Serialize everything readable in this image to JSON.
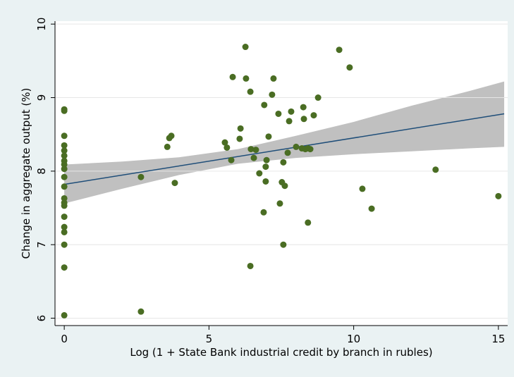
{
  "chart_data": {
    "type": "scatter",
    "x_label": "Log (1 + State Bank industrial credit by branch in rubles)",
    "y_label": "Change in aggregate output (%)",
    "xlim": [
      -0.32,
      15.32
    ],
    "ylim": [
      5.9,
      10.04
    ],
    "xticks": [
      0,
      5,
      10,
      15
    ],
    "yticks": [
      6,
      7,
      8,
      9,
      10
    ],
    "grid": true,
    "points": {
      "color": "#4a6d23",
      "x": [
        0,
        0,
        0,
        0,
        0,
        0,
        0,
        0,
        0,
        0,
        0,
        0,
        0,
        0,
        0,
        0,
        0,
        0,
        0,
        0,
        2.65,
        2.65,
        3.56,
        3.63,
        3.7,
        3.82,
        5.55,
        5.62,
        5.77,
        5.82,
        6.06,
        6.09,
        6.26,
        6.28,
        6.43,
        6.45,
        6.55,
        6.62,
        6.43,
        6.74,
        6.89,
        6.91,
        6.96,
        6.96,
        6.99,
        7.06,
        7.18,
        7.23,
        7.4,
        7.45,
        7.52,
        7.57,
        7.62,
        7.57,
        7.72,
        7.77,
        7.84,
        8.01,
        8.21,
        8.26,
        8.28,
        8.33,
        8.42,
        8.5,
        8.42,
        8.62,
        8.77,
        9.5,
        9.86,
        10.3,
        10.62,
        12.83,
        15.0
      ],
      "y": [
        8.84,
        8.82,
        8.48,
        8.35,
        8.28,
        8.21,
        8.14,
        8.09,
        8.03,
        7.92,
        7.79,
        7.63,
        7.57,
        7.53,
        7.38,
        7.24,
        7.17,
        7.0,
        6.69,
        6.04,
        6.09,
        7.92,
        8.33,
        8.45,
        8.48,
        7.84,
        8.39,
        8.32,
        8.15,
        9.28,
        8.44,
        8.58,
        9.69,
        9.26,
        9.08,
        8.3,
        8.18,
        8.29,
        6.71,
        7.97,
        7.44,
        8.9,
        8.06,
        7.86,
        8.15,
        8.47,
        9.04,
        9.26,
        8.78,
        7.56,
        7.85,
        8.12,
        7.8,
        7.0,
        8.25,
        8.68,
        8.81,
        8.33,
        8.31,
        8.87,
        8.71,
        8.3,
        8.31,
        8.3,
        7.3,
        8.76,
        9.0,
        9.65,
        9.41,
        7.76,
        7.49,
        8.02,
        7.66
      ]
    },
    "fit": {
      "color": "#1f4e79",
      "x": [
        0,
        15.2
      ],
      "y": [
        7.82,
        8.78
      ]
    },
    "band": {
      "color": "#c0c0c0",
      "x": [
        0,
        2,
        4,
        6,
        8,
        10,
        12,
        14,
        15.2
      ],
      "upper": [
        8.09,
        8.13,
        8.19,
        8.3,
        8.48,
        8.67,
        8.89,
        9.09,
        9.22
      ],
      "lower": [
        7.56,
        7.76,
        7.95,
        8.1,
        8.18,
        8.23,
        8.27,
        8.31,
        8.33
      ]
    }
  }
}
